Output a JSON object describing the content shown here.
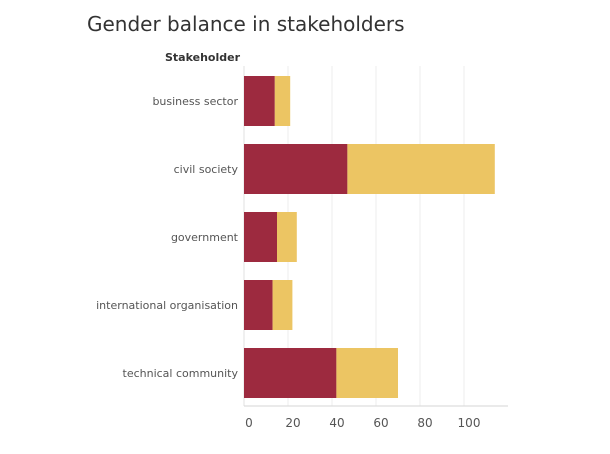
{
  "chart_data": {
    "type": "bar",
    "orientation": "horizontal",
    "stacked": true,
    "title": "Gender balance in stakeholders",
    "y_header": "Stakeholder",
    "categories": [
      "business sector",
      "civil society",
      "government",
      "international organisation",
      "technical community"
    ],
    "series": [
      {
        "values": [
          14,
          47,
          15,
          13,
          42
        ],
        "color": "#9d2a3f"
      },
      {
        "values": [
          7,
          67,
          9,
          9,
          28
        ],
        "color": "#ecc563"
      }
    ],
    "xticks": [
      0,
      20,
      40,
      60,
      80,
      100
    ],
    "xlim": [
      0,
      118
    ],
    "grid": true
  }
}
